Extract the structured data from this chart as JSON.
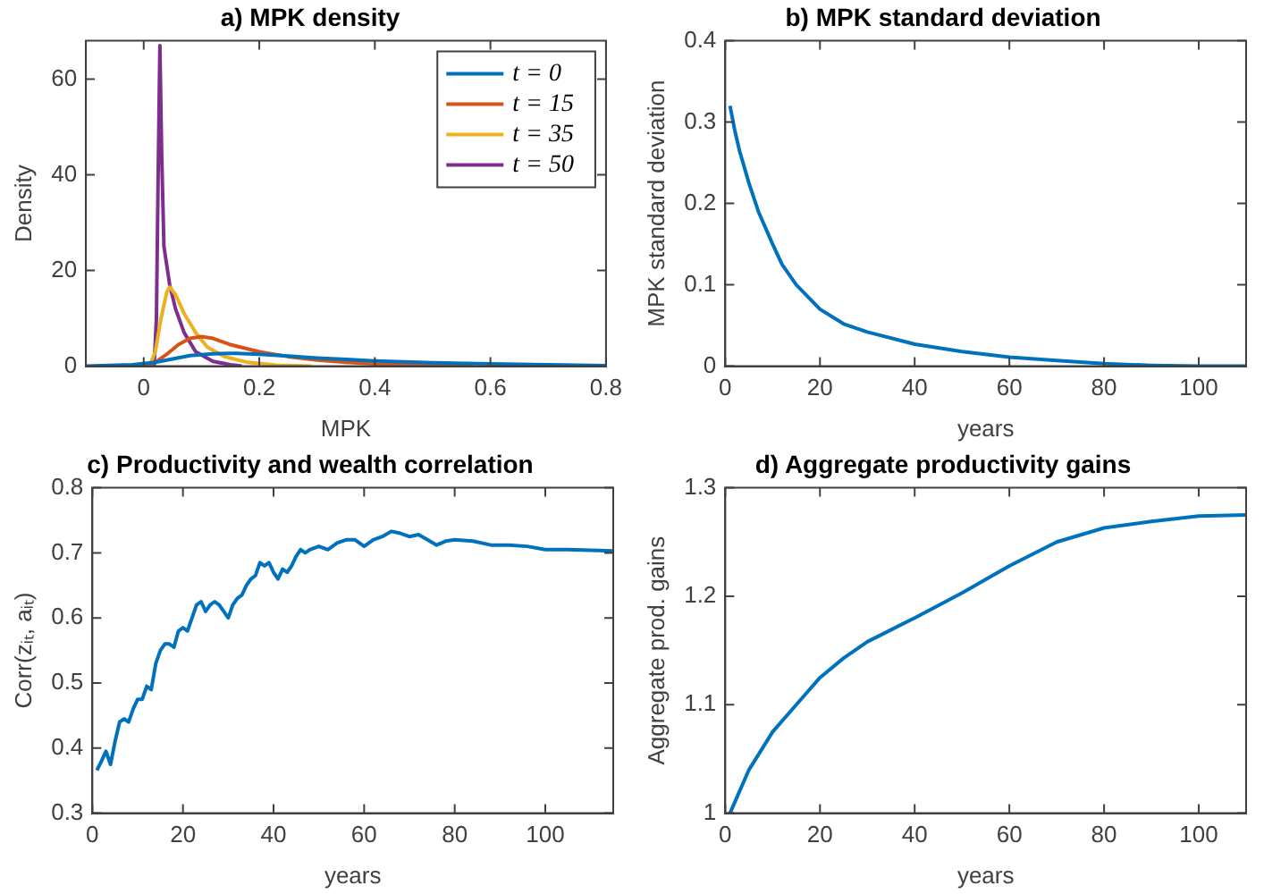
{
  "chart_data": [
    {
      "type": "line",
      "title": "a) MPK density",
      "xlabel": "MPK",
      "ylabel": "Density",
      "xlim": [
        -0.1,
        0.8
      ],
      "xticks": [
        0,
        0.2,
        0.4,
        0.6,
        0.8
      ],
      "ylim": [
        0,
        68
      ],
      "yticks": [
        0,
        20,
        40,
        60
      ],
      "legend": "top right",
      "marker": "none",
      "series": [
        {
          "name": "t = 0",
          "color": "#0072bd",
          "x": [
            -0.1,
            -0.02,
            0.02,
            0.05,
            0.08,
            0.12,
            0.16,
            0.2,
            0.25,
            0.3,
            0.35,
            0.4,
            0.45,
            0.5,
            0.6,
            0.7,
            0.8
          ],
          "values": [
            0,
            0.3,
            0.8,
            1.5,
            2.2,
            2.6,
            2.7,
            2.5,
            2.1,
            1.7,
            1.4,
            1.1,
            0.9,
            0.7,
            0.5,
            0.3,
            0.1
          ]
        },
        {
          "name": "t = 15",
          "color": "#d95319",
          "x": [
            0,
            0.02,
            0.04,
            0.06,
            0.08,
            0.1,
            0.12,
            0.15,
            0.2,
            0.25,
            0.3,
            0.35,
            0.4,
            0.5,
            0.57
          ],
          "values": [
            0,
            0.8,
            2.5,
            4.5,
            5.8,
            6.2,
            5.8,
            4.5,
            3,
            2,
            1.3,
            0.8,
            0.5,
            0.2,
            0
          ]
        },
        {
          "name": "t = 35",
          "color": "#edb120",
          "x": [
            0.01,
            0.02,
            0.03,
            0.04,
            0.045,
            0.055,
            0.07,
            0.09,
            0.11,
            0.14,
            0.18,
            0.23,
            0.29
          ],
          "values": [
            0,
            3,
            10,
            15.5,
            16.5,
            15,
            11,
            7,
            4,
            2,
            0.8,
            0.2,
            0
          ]
        },
        {
          "name": "t = 50",
          "color": "#7e2f8e",
          "x": [
            0.018,
            0.022,
            0.025,
            0.028,
            0.031,
            0.035,
            0.045,
            0.055,
            0.07,
            0.09,
            0.12,
            0.15,
            0.17
          ],
          "values": [
            0,
            10,
            40,
            67,
            45,
            25,
            17,
            12,
            7,
            3,
            1,
            0.3,
            0
          ]
        }
      ]
    },
    {
      "type": "line",
      "title": "b) MPK standard deviation",
      "xlabel": "years",
      "ylabel": "MPK standard deviation",
      "xlim": [
        0,
        110
      ],
      "xticks": [
        0,
        20,
        40,
        60,
        80,
        100
      ],
      "ylim": [
        0,
        0.4
      ],
      "yticks": [
        0,
        0.1,
        0.2,
        0.3,
        0.4
      ],
      "marker": "none",
      "series": [
        {
          "color": "#0072bd",
          "x": [
            1,
            2,
            3,
            5,
            7,
            10,
            12,
            15,
            20,
            25,
            30,
            40,
            50,
            60,
            70,
            80,
            90,
            100,
            110
          ],
          "values": [
            0.32,
            0.29,
            0.265,
            0.225,
            0.19,
            0.15,
            0.125,
            0.1,
            0.07,
            0.052,
            0.042,
            0.027,
            0.018,
            0.011,
            0.007,
            0.003,
            0.001,
            0,
            0
          ]
        }
      ]
    },
    {
      "type": "line",
      "title": "c) Productivity and wealth correlation",
      "xlabel": "years",
      "ylabel": "Corr(zᵢₜ, aᵢₜ)",
      "xlim": [
        0,
        115
      ],
      "xticks": [
        0,
        20,
        40,
        60,
        80,
        100
      ],
      "ylim": [
        0.3,
        0.8
      ],
      "yticks": [
        0.3,
        0.4,
        0.5,
        0.6,
        0.7,
        0.8
      ],
      "marker": "none",
      "series": [
        {
          "color": "#0072bd",
          "x": [
            1,
            2,
            3,
            4,
            5,
            6,
            7,
            8,
            9,
            10,
            11,
            12,
            13,
            14,
            15,
            16,
            17,
            18,
            19,
            20,
            21,
            22,
            23,
            24,
            25,
            26,
            27,
            28,
            29,
            30,
            31,
            32,
            33,
            34,
            35,
            36,
            37,
            38,
            39,
            40,
            41,
            42,
            43,
            44,
            45,
            46,
            47,
            48,
            50,
            52,
            54,
            56,
            58,
            60,
            62,
            64,
            66,
            68,
            70,
            72,
            74,
            76,
            78,
            80,
            84,
            88,
            92,
            96,
            100,
            105,
            110,
            115
          ],
          "values": [
            0.366,
            0.38,
            0.395,
            0.375,
            0.41,
            0.44,
            0.445,
            0.44,
            0.46,
            0.475,
            0.475,
            0.495,
            0.49,
            0.53,
            0.55,
            0.56,
            0.56,
            0.555,
            0.58,
            0.585,
            0.58,
            0.6,
            0.62,
            0.625,
            0.61,
            0.62,
            0.625,
            0.62,
            0.61,
            0.6,
            0.62,
            0.63,
            0.635,
            0.65,
            0.66,
            0.665,
            0.685,
            0.68,
            0.685,
            0.67,
            0.66,
            0.675,
            0.67,
            0.68,
            0.695,
            0.705,
            0.7,
            0.705,
            0.71,
            0.705,
            0.715,
            0.72,
            0.72,
            0.71,
            0.72,
            0.725,
            0.733,
            0.73,
            0.725,
            0.728,
            0.72,
            0.712,
            0.718,
            0.72,
            0.718,
            0.712,
            0.712,
            0.71,
            0.705,
            0.705,
            0.704,
            0.703
          ]
        }
      ]
    },
    {
      "type": "line",
      "title": "d) Aggregate productivity gains",
      "xlabel": "years",
      "ylabel": "Aggregate prod. gains",
      "xlim": [
        0,
        110
      ],
      "xticks": [
        0,
        20,
        40,
        60,
        80,
        100
      ],
      "ylim": [
        1,
        1.3
      ],
      "yticks": [
        1,
        1.1,
        1.2,
        1.3
      ],
      "marker": "none",
      "series": [
        {
          "color": "#0072bd",
          "x": [
            1,
            5,
            10,
            15,
            20,
            25,
            30,
            40,
            50,
            60,
            70,
            80,
            90,
            100,
            110
          ],
          "values": [
            1,
            1.04,
            1.075,
            1.1,
            1.125,
            1.143,
            1.158,
            1.18,
            1.203,
            1.228,
            1.25,
            1.263,
            1.269,
            1.274,
            1.275
          ]
        }
      ]
    }
  ]
}
